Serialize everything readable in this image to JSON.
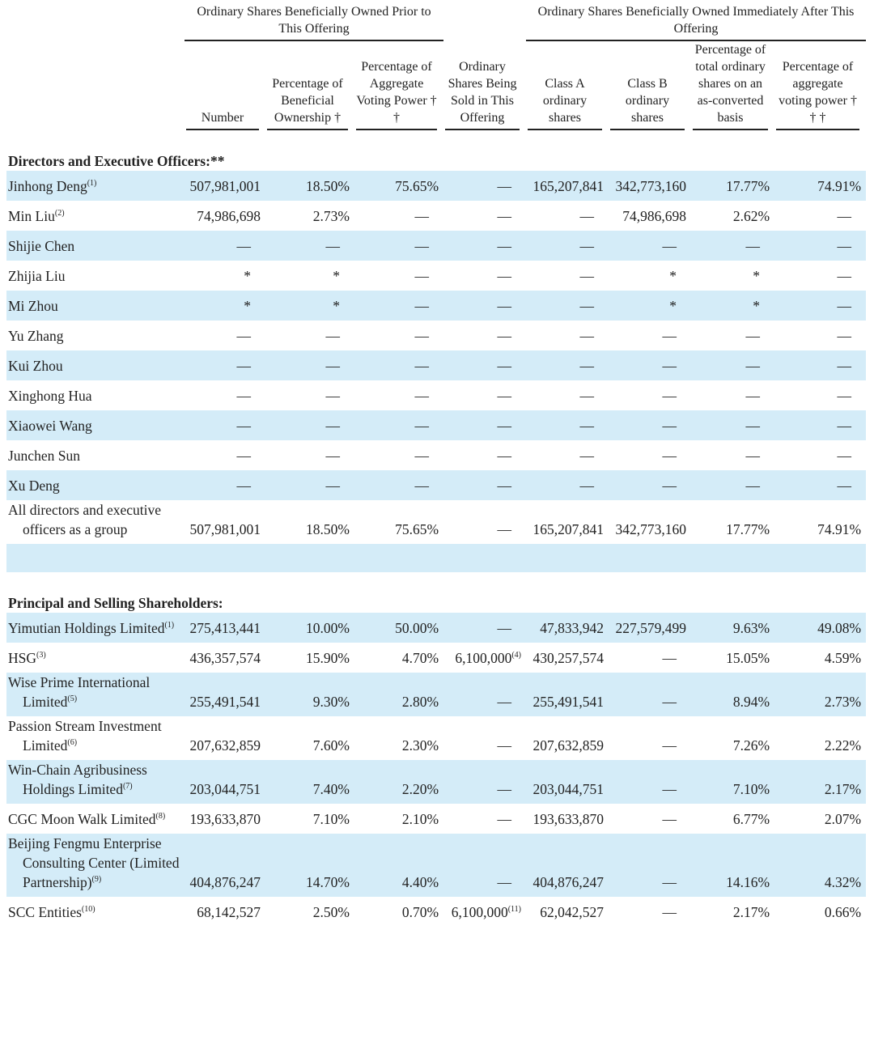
{
  "header_groups": [
    "Ordinary Shares Beneficially Owned Prior to This Offering",
    "Ordinary Shares Beneficially Owned Immediately After This Offering"
  ],
  "columns": [
    "Number",
    "Percentage of Beneficial Ownership †",
    "Percentage of Aggregate Voting Power † †",
    "Ordinary Shares Being Sold in This Offering",
    "Class A ordinary shares",
    "Class B ordinary shares",
    "Percentage of total ordinary shares on an as-converted basis",
    "Percentage of aggregate voting power † † †"
  ],
  "sections": [
    {
      "title": "Directors and Executive Officers:**",
      "rows": [
        {
          "name": "Jinhong Deng",
          "note": "(1)",
          "cells": [
            "507,981,001",
            "18.50%",
            "75.65%",
            "—",
            "165,207,841",
            "342,773,160",
            "17.77%",
            "74.91%"
          ]
        },
        {
          "name": "Min Liu",
          "note": "(2)",
          "cells": [
            "74,986,698",
            "2.73%",
            "—",
            "—",
            "—",
            "74,986,698",
            "2.62%",
            "—"
          ]
        },
        {
          "name": "Shijie Chen",
          "cells": [
            "—",
            "—",
            "—",
            "—",
            "—",
            "—",
            "—",
            "—"
          ]
        },
        {
          "name": "Zhijia Liu",
          "cells": [
            "*",
            "*",
            "—",
            "—",
            "—",
            "*",
            "*",
            "—"
          ]
        },
        {
          "name": "Mi Zhou",
          "cells": [
            "*",
            "*",
            "—",
            "—",
            "—",
            "*",
            "*",
            "—"
          ]
        },
        {
          "name": "Yu Zhang",
          "cells": [
            "—",
            "—",
            "—",
            "—",
            "—",
            "—",
            "—",
            "—"
          ]
        },
        {
          "name": "Kui Zhou",
          "cells": [
            "—",
            "—",
            "—",
            "—",
            "—",
            "—",
            "—",
            "—"
          ]
        },
        {
          "name": "Xinghong Hua",
          "cells": [
            "—",
            "—",
            "—",
            "—",
            "—",
            "—",
            "—",
            "—"
          ]
        },
        {
          "name": "Xiaowei Wang",
          "cells": [
            "—",
            "—",
            "—",
            "—",
            "—",
            "—",
            "—",
            "—"
          ]
        },
        {
          "name": "Junchen Sun",
          "cells": [
            "—",
            "—",
            "—",
            "—",
            "—",
            "—",
            "—",
            "—"
          ]
        },
        {
          "name": "Xu Deng",
          "cells": [
            "—",
            "—",
            "—",
            "—",
            "—",
            "—",
            "—",
            "—"
          ]
        },
        {
          "name": "All directors and executive officers as a group",
          "cells": [
            "507,981,001",
            "18.50%",
            "75.65%",
            "—",
            "165,207,841",
            "342,773,160",
            "17.77%",
            "74.91%"
          ]
        }
      ]
    },
    {
      "title": "Principal and Selling Shareholders:",
      "rows": [
        {
          "name": "Yimutian Holdings Limited",
          "note": "(1)",
          "cells": [
            "275,413,441",
            "10.00%",
            "50.00%",
            "—",
            "47,833,942",
            "227,579,499",
            "9.63%",
            "49.08%"
          ]
        },
        {
          "name": "HSG",
          "note": "(3)",
          "cells": [
            "436,357,574",
            "15.90%",
            "4.70%",
            {
              "text": "6,100,000",
              "note": "(4)"
            },
            "430,257,574",
            "—",
            "15.05%",
            "4.59%"
          ]
        },
        {
          "name": "Wise Prime International Limited",
          "note": "(5)",
          "cells": [
            "255,491,541",
            "9.30%",
            "2.80%",
            "—",
            "255,491,541",
            "—",
            "8.94%",
            "2.73%"
          ]
        },
        {
          "name": "Passion Stream Investment Limited",
          "note": "(6)",
          "cells": [
            "207,632,859",
            "7.60%",
            "2.30%",
            "—",
            "207,632,859",
            "—",
            "7.26%",
            "2.22%"
          ]
        },
        {
          "name": "Win-Chain Agribusiness Holdings Limited",
          "note": "(7)",
          "cells": [
            "203,044,751",
            "7.40%",
            "2.20%",
            "—",
            "203,044,751",
            "—",
            "7.10%",
            "2.17%"
          ]
        },
        {
          "name": "CGC Moon Walk Limited",
          "note": "(8)",
          "cells": [
            "193,633,870",
            "7.10%",
            "2.10%",
            "—",
            "193,633,870",
            "—",
            "6.77%",
            "2.07%"
          ]
        },
        {
          "name": "Beijing Fengmu Enterprise Consulting Center (Limited Partnership)",
          "note": "(9)",
          "cells": [
            "404,876,247",
            "14.70%",
            "4.40%",
            "—",
            "404,876,247",
            "—",
            "14.16%",
            "4.32%"
          ]
        },
        {
          "name": "SCC Entities",
          "note": "(10)",
          "cells": [
            "68,142,527",
            "2.50%",
            "0.70%",
            {
              "text": "6,100,000",
              "note": "(11)"
            },
            "62,042,527",
            "—",
            "2.17%",
            "0.66%"
          ]
        }
      ]
    }
  ]
}
